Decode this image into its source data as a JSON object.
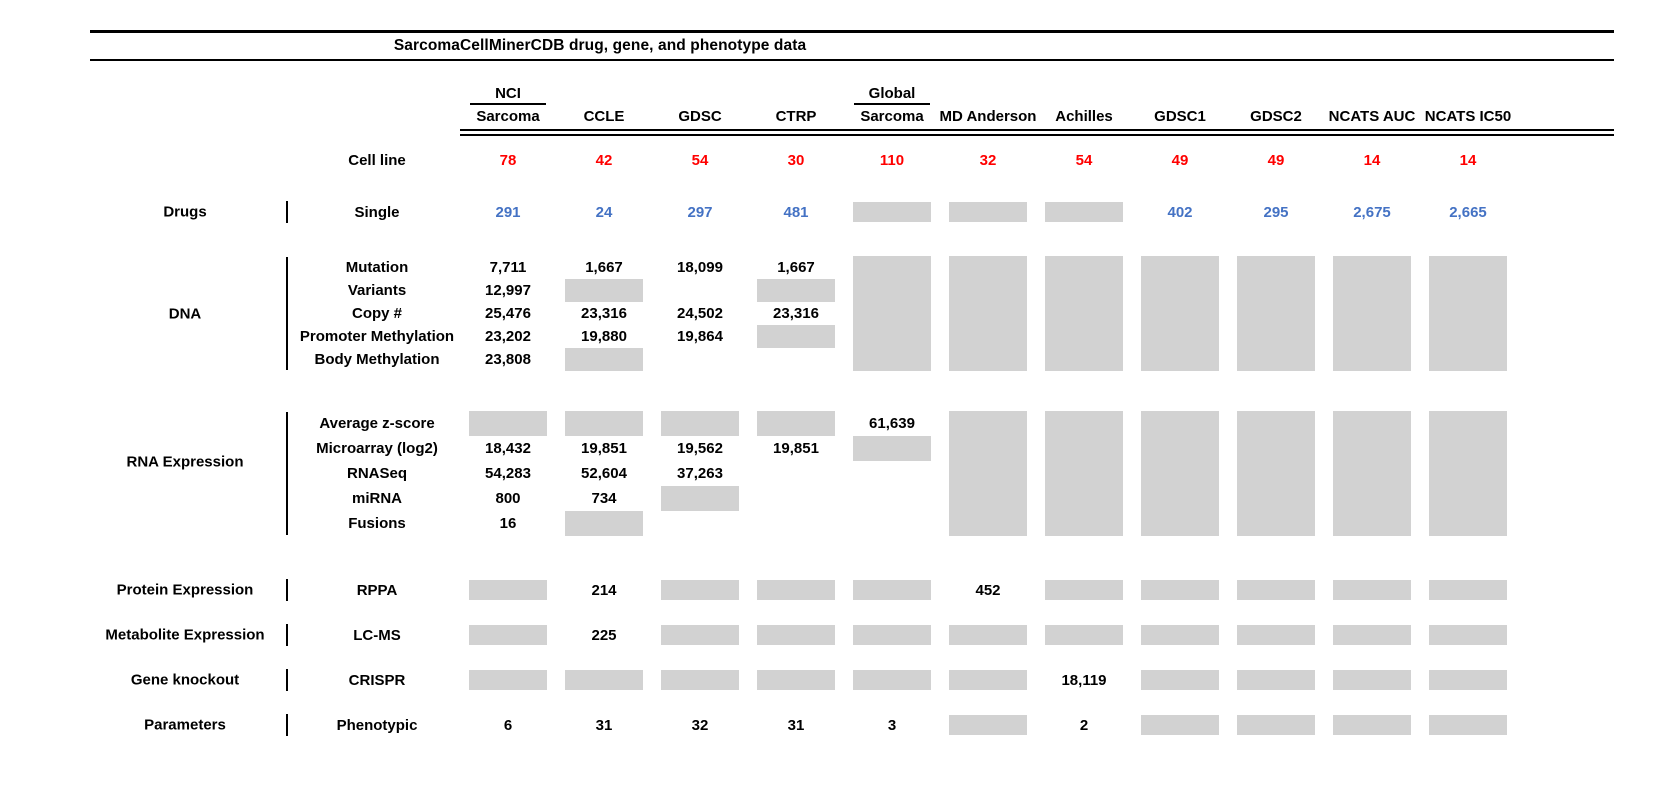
{
  "colors": {
    "red": "#ff0000",
    "blue": "#4472c4",
    "gray_box": "#d2d2d2",
    "text": "#000000",
    "rule": "#000000"
  },
  "chart_data": {
    "type": "table",
    "title": "SarcomaCellMinerCDB drug, gene, and phenotype data",
    "gray_cell_token": "#",
    "columns": [
      {
        "top": "NCI",
        "name": "Sarcoma"
      },
      {
        "name": "CCLE"
      },
      {
        "name": "GDSC"
      },
      {
        "name": "CTRP"
      },
      {
        "top": "Global",
        "name": "Sarcoma"
      },
      {
        "name": "MD Anderson"
      },
      {
        "name": "Achilles"
      },
      {
        "name": "GDSC1"
      },
      {
        "name": "GDSC2"
      },
      {
        "name": "NCATS AUC"
      },
      {
        "name": "NCATS IC50"
      }
    ],
    "cell_line_row": {
      "label": "Cell line",
      "color": "red",
      "values": [
        "78",
        "42",
        "54",
        "30",
        "110",
        "32",
        "54",
        "49",
        "49",
        "14",
        "14"
      ]
    },
    "groups": [
      {
        "category": "Drugs",
        "rows": [
          {
            "label": "Single",
            "color": "blue",
            "cells": [
              "291",
              "24",
              "297",
              "481",
              "#",
              "#",
              "#",
              "402",
              "295",
              "2,675",
              "2,665"
            ]
          }
        ]
      },
      {
        "category": "DNA",
        "rows": [
          {
            "label": "Mutation",
            "cells": [
              "7,711",
              "1,667",
              "18,099",
              "1,667",
              "#",
              "#",
              "#",
              "#",
              "#",
              "#",
              "#"
            ]
          },
          {
            "label": "Variants",
            "cells": [
              "12,997",
              "#",
              "",
              "#",
              "#",
              "#",
              "#",
              "#",
              "#",
              "#",
              "#"
            ]
          },
          {
            "label": "Copy #",
            "cells": [
              "25,476",
              "23,316",
              "24,502",
              "23,316",
              "#",
              "#",
              "#",
              "#",
              "#",
              "#",
              "#"
            ]
          },
          {
            "label": "Promoter Methylation",
            "cells": [
              "23,202",
              "19,880",
              "19,864",
              "#",
              "#",
              "#",
              "#",
              "#",
              "#",
              "#",
              "#"
            ]
          },
          {
            "label": "Body Methylation",
            "cells": [
              "23,808",
              "#",
              "",
              "",
              "#",
              "#",
              "#",
              "#",
              "#",
              "#",
              "#"
            ]
          }
        ]
      },
      {
        "category": "RNA Expression",
        "rows": [
          {
            "label": "Average z-score",
            "cells": [
              "#",
              "#",
              "#",
              "#",
              "61,639",
              "#",
              "#",
              "#",
              "#",
              "#",
              "#"
            ]
          },
          {
            "label": "Microarray (log2)",
            "cells": [
              "18,432",
              "19,851",
              "19,562",
              "19,851",
              "#",
              "#",
              "#",
              "#",
              "#",
              "#",
              "#"
            ]
          },
          {
            "label": "RNASeq",
            "cells": [
              "54,283",
              "52,604",
              "37,263",
              "",
              "",
              "#",
              "#",
              "#",
              "#",
              "#",
              "#"
            ]
          },
          {
            "label": "miRNA",
            "cells": [
              "800",
              "734",
              "#",
              "",
              "",
              "#",
              "#",
              "#",
              "#",
              "#",
              "#"
            ]
          },
          {
            "label": "Fusions",
            "cells": [
              "16",
              "#",
              "",
              "",
              "",
              "#",
              "#",
              "#",
              "#",
              "#",
              "#"
            ]
          }
        ]
      },
      {
        "category": "Protein Expression",
        "rows": [
          {
            "label": "RPPA",
            "cells": [
              "#",
              "214",
              "#",
              "#",
              "#",
              "452",
              "#",
              "#",
              "#",
              "#",
              "#"
            ]
          }
        ]
      },
      {
        "category": "Metabolite Expression",
        "rows": [
          {
            "label": "LC-MS",
            "cells": [
              "#",
              "225",
              "#",
              "#",
              "#",
              "#",
              "#",
              "#",
              "#",
              "#",
              "#"
            ]
          }
        ]
      },
      {
        "category": "Gene knockout",
        "rows": [
          {
            "label": "CRISPR",
            "cells": [
              "#",
              "#",
              "#",
              "#",
              "#",
              "#",
              "18,119",
              "#",
              "#",
              "#",
              "#"
            ]
          }
        ]
      },
      {
        "category": "Parameters",
        "rows": [
          {
            "label": "Phenotypic",
            "cells": [
              "6",
              "31",
              "32",
              "31",
              "3",
              "#",
              "2",
              "#",
              "#",
              "#",
              "#"
            ]
          }
        ]
      }
    ]
  }
}
